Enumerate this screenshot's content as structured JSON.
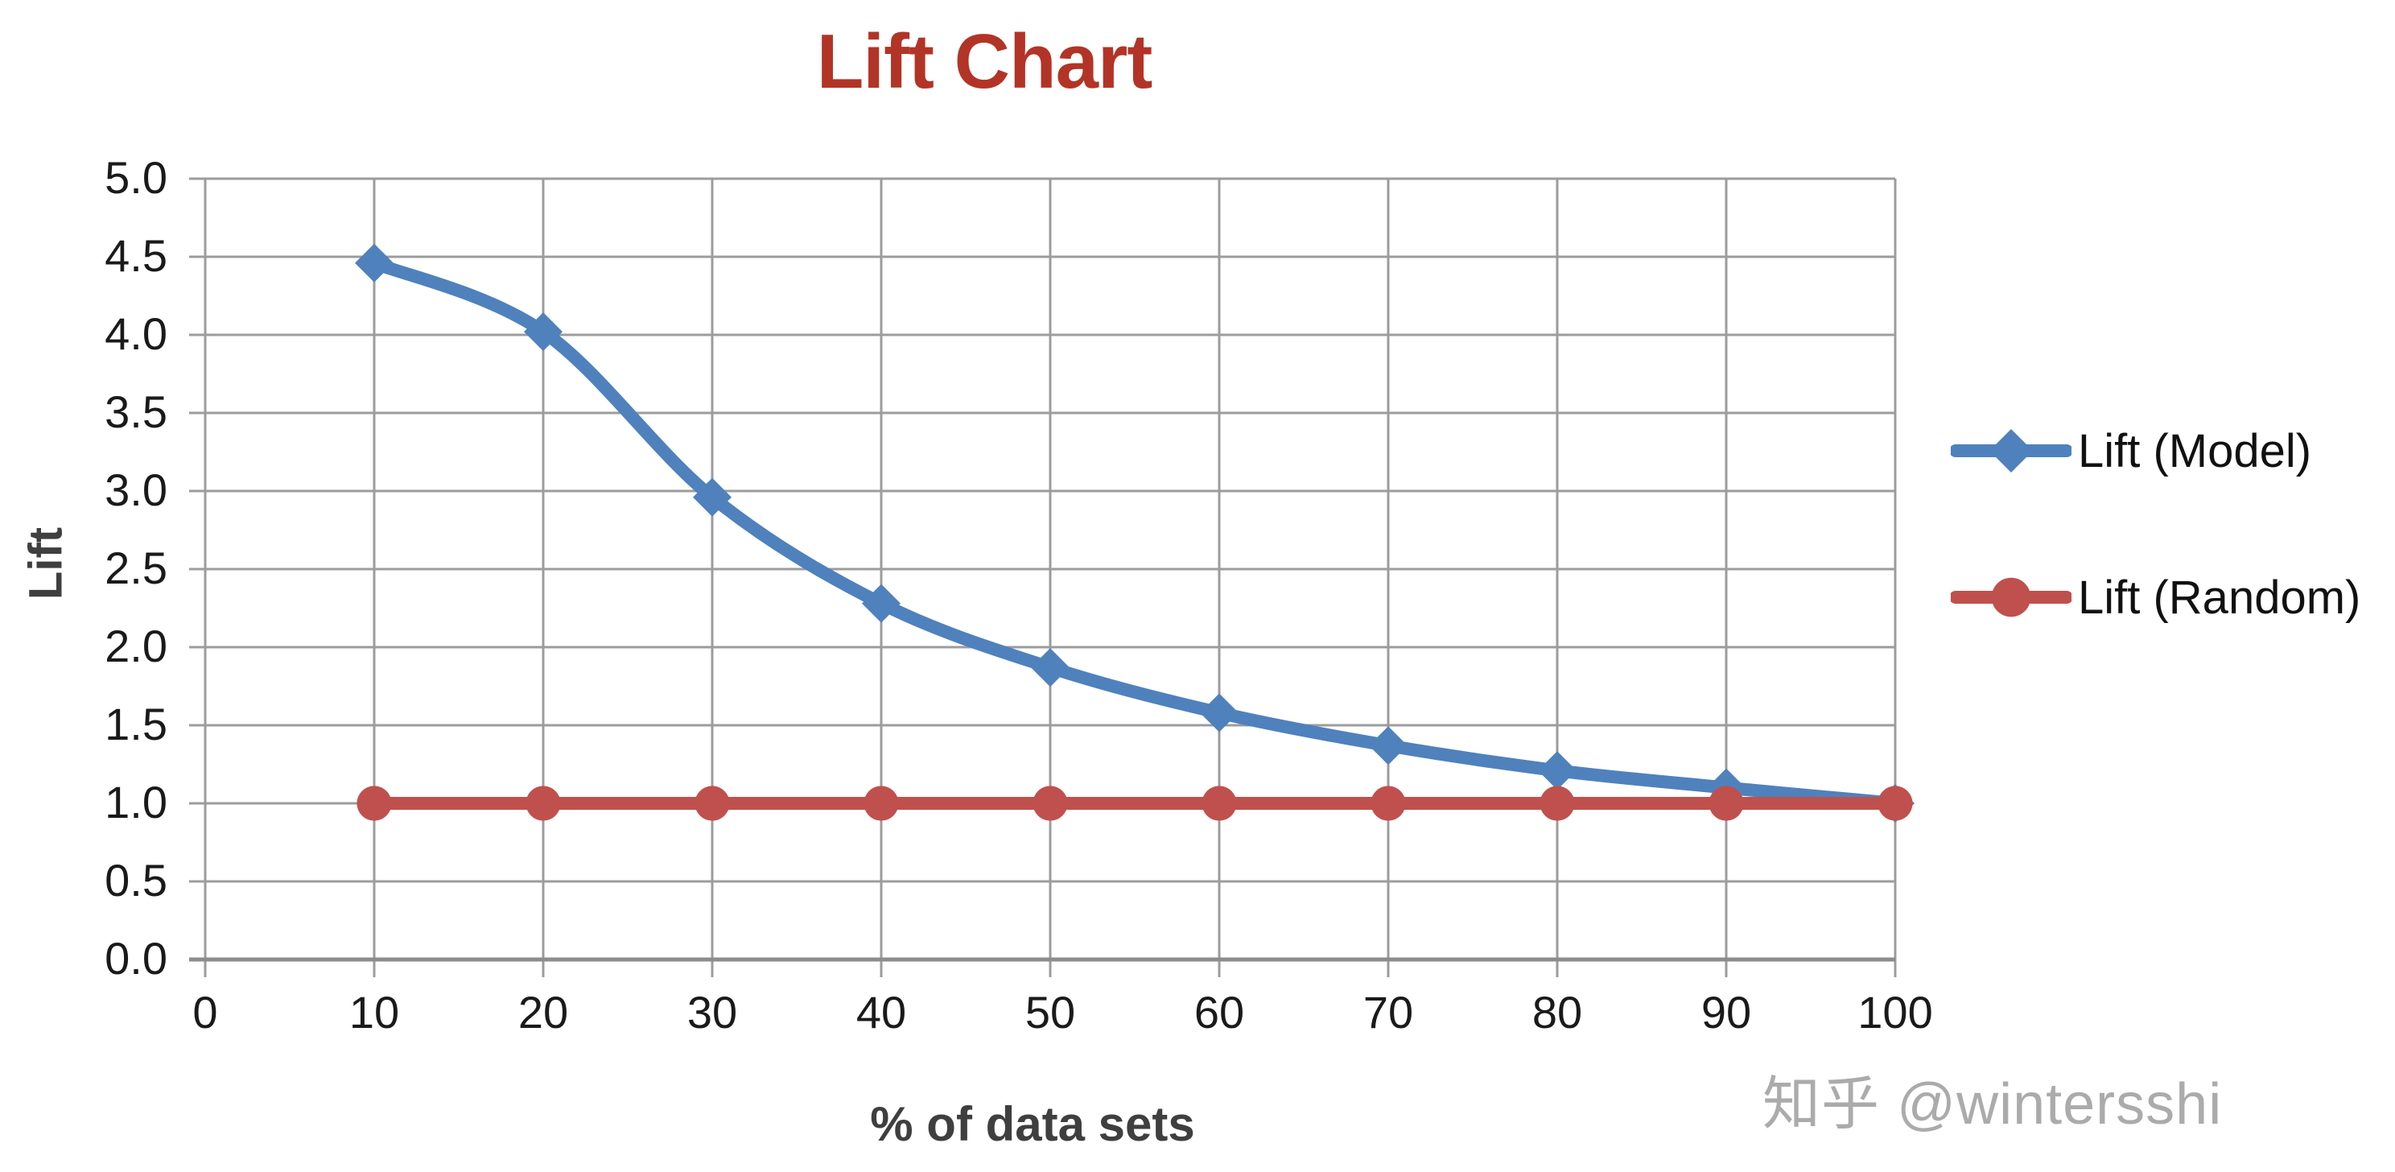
{
  "title": "Lift Chart",
  "watermark": "知乎 @wintersshi",
  "colors": {
    "title": "#b23427",
    "axis_title": "#3f3f3f",
    "tick_text": "#1a1a1a",
    "gridline": "#9c9c9c",
    "axis_line": "#8c8c8c",
    "model_blue": "#4f81bd",
    "random_red": "#c0504d",
    "watermark_gray": "#ababab"
  },
  "chart_data": {
    "type": "line",
    "title": "Lift Chart",
    "xlabel": "% of data sets",
    "ylabel": "Lift",
    "xlim": [
      0,
      100
    ],
    "ylim": [
      0.0,
      5.0
    ],
    "x_tick_step": 10,
    "y_tick_step": 0.5,
    "grid": true,
    "legend_position": "right",
    "x_tick_labels": [
      "0",
      "10",
      "20",
      "30",
      "40",
      "50",
      "60",
      "70",
      "80",
      "90",
      "100"
    ],
    "y_tick_labels": [
      "0.0",
      "0.5",
      "1.0",
      "1.5",
      "2.0",
      "2.5",
      "3.0",
      "3.5",
      "4.0",
      "4.5",
      "5.0"
    ],
    "x": [
      10,
      20,
      30,
      40,
      50,
      60,
      70,
      80,
      90,
      100
    ],
    "series": [
      {
        "name": "Lift (Model)",
        "color": "#4f81bd",
        "marker": "diamond",
        "smooth": true,
        "values": [
          4.46,
          4.02,
          2.96,
          2.28,
          1.87,
          1.58,
          1.37,
          1.21,
          1.1,
          1.0
        ]
      },
      {
        "name": "Lift (Random)",
        "color": "#c0504d",
        "marker": "circle",
        "smooth": false,
        "values": [
          1.0,
          1.0,
          1.0,
          1.0,
          1.0,
          1.0,
          1.0,
          1.0,
          1.0,
          1.0
        ]
      }
    ]
  }
}
